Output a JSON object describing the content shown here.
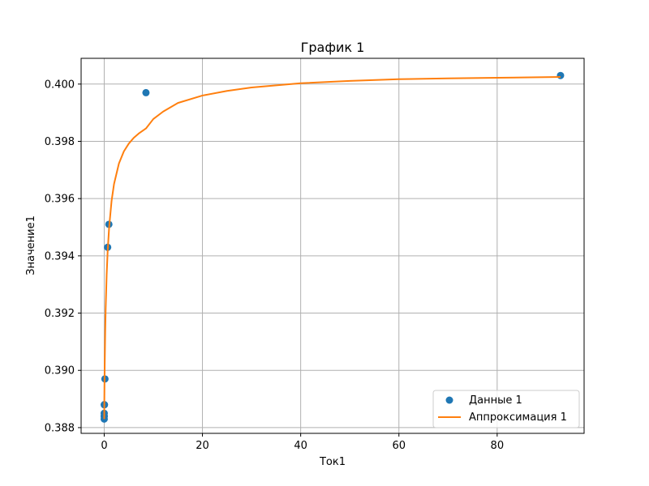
{
  "chart_data": {
    "type": "scatter",
    "title": "График 1",
    "xlabel": "Ток1",
    "ylabel": "Значение1",
    "xlim": [
      -4.7,
      97.7
    ],
    "ylim": [
      0.3878,
      0.4009
    ],
    "xticks": [
      0,
      20,
      40,
      60,
      80
    ],
    "xtick_labels": [
      "0",
      "20",
      "40",
      "60",
      "80"
    ],
    "yticks": [
      0.388,
      0.39,
      0.392,
      0.394,
      0.396,
      0.398,
      0.4
    ],
    "ytick_labels": [
      "0.388",
      "0.390",
      "0.392",
      "0.394",
      "0.396",
      "0.398",
      "0.400"
    ],
    "grid": true,
    "legend_position": "lower-right",
    "series": [
      {
        "name": "Данные 1",
        "kind": "scatter",
        "color": "#1f77b4",
        "x": [
          0.0,
          0.0,
          0.0,
          0.0,
          0.01,
          0.05,
          0.15,
          0.7,
          0.95,
          8.5,
          92.9
        ],
        "y": [
          0.3883,
          0.3884,
          0.3885,
          0.3884,
          0.3888,
          0.3888,
          0.3897,
          0.3943,
          0.3951,
          0.3997,
          0.4003
        ]
      },
      {
        "name": "Аппроксимация 1",
        "kind": "line",
        "color": "#ff7f0e",
        "x": [
          0.0,
          0.02,
          0.05,
          0.1,
          0.2,
          0.3,
          0.5,
          0.7,
          1.0,
          1.5,
          2.0,
          3.0,
          4.0,
          5.0,
          6.0,
          7.0,
          8.5,
          10,
          12,
          15,
          20,
          25,
          30,
          40,
          50,
          60,
          70,
          80,
          92.9
        ],
        "y": [
          0.3883,
          0.38881,
          0.38941,
          0.39018,
          0.39134,
          0.39217,
          0.39334,
          0.39415,
          0.39499,
          0.39592,
          0.39651,
          0.39723,
          0.39765,
          0.39792,
          0.39812,
          0.39827,
          0.39845,
          0.39878,
          0.39904,
          0.39934,
          0.3996,
          0.39976,
          0.39988,
          0.40003,
          0.40011,
          0.40017,
          0.4002,
          0.40022,
          0.40025
        ]
      }
    ]
  }
}
